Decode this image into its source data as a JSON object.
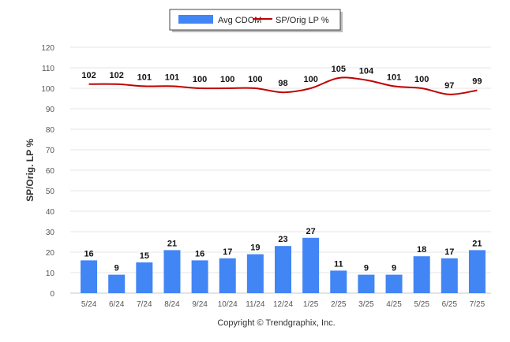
{
  "chart_data": {
    "type": "bar",
    "categories": [
      "5/24",
      "6/24",
      "7/24",
      "8/24",
      "9/24",
      "10/24",
      "11/24",
      "12/24",
      "1/25",
      "2/25",
      "3/25",
      "4/25",
      "5/25",
      "6/25",
      "7/25"
    ],
    "series": [
      {
        "name": "Avg CDOM",
        "type": "bar",
        "color": "#4285f4",
        "values": [
          16,
          9,
          15,
          21,
          16,
          17,
          19,
          23,
          27,
          11,
          9,
          9,
          18,
          17,
          21
        ]
      },
      {
        "name": "SP/Orig LP %",
        "type": "line",
        "color": "#c00000",
        "values": [
          102,
          102,
          101,
          101,
          100,
          100,
          100,
          98,
          100,
          105,
          104,
          101,
          100,
          97,
          99
        ]
      }
    ],
    "ylabel": "SP/Orig. LP %",
    "ylim": [
      0,
      120
    ],
    "yticks": [
      0,
      10,
      20,
      30,
      40,
      50,
      60,
      70,
      80,
      90,
      100,
      110,
      120
    ],
    "grid": true,
    "legend_position": "top-center"
  },
  "footer": {
    "copyright": "Copyright © Trendgraphix, Inc."
  }
}
